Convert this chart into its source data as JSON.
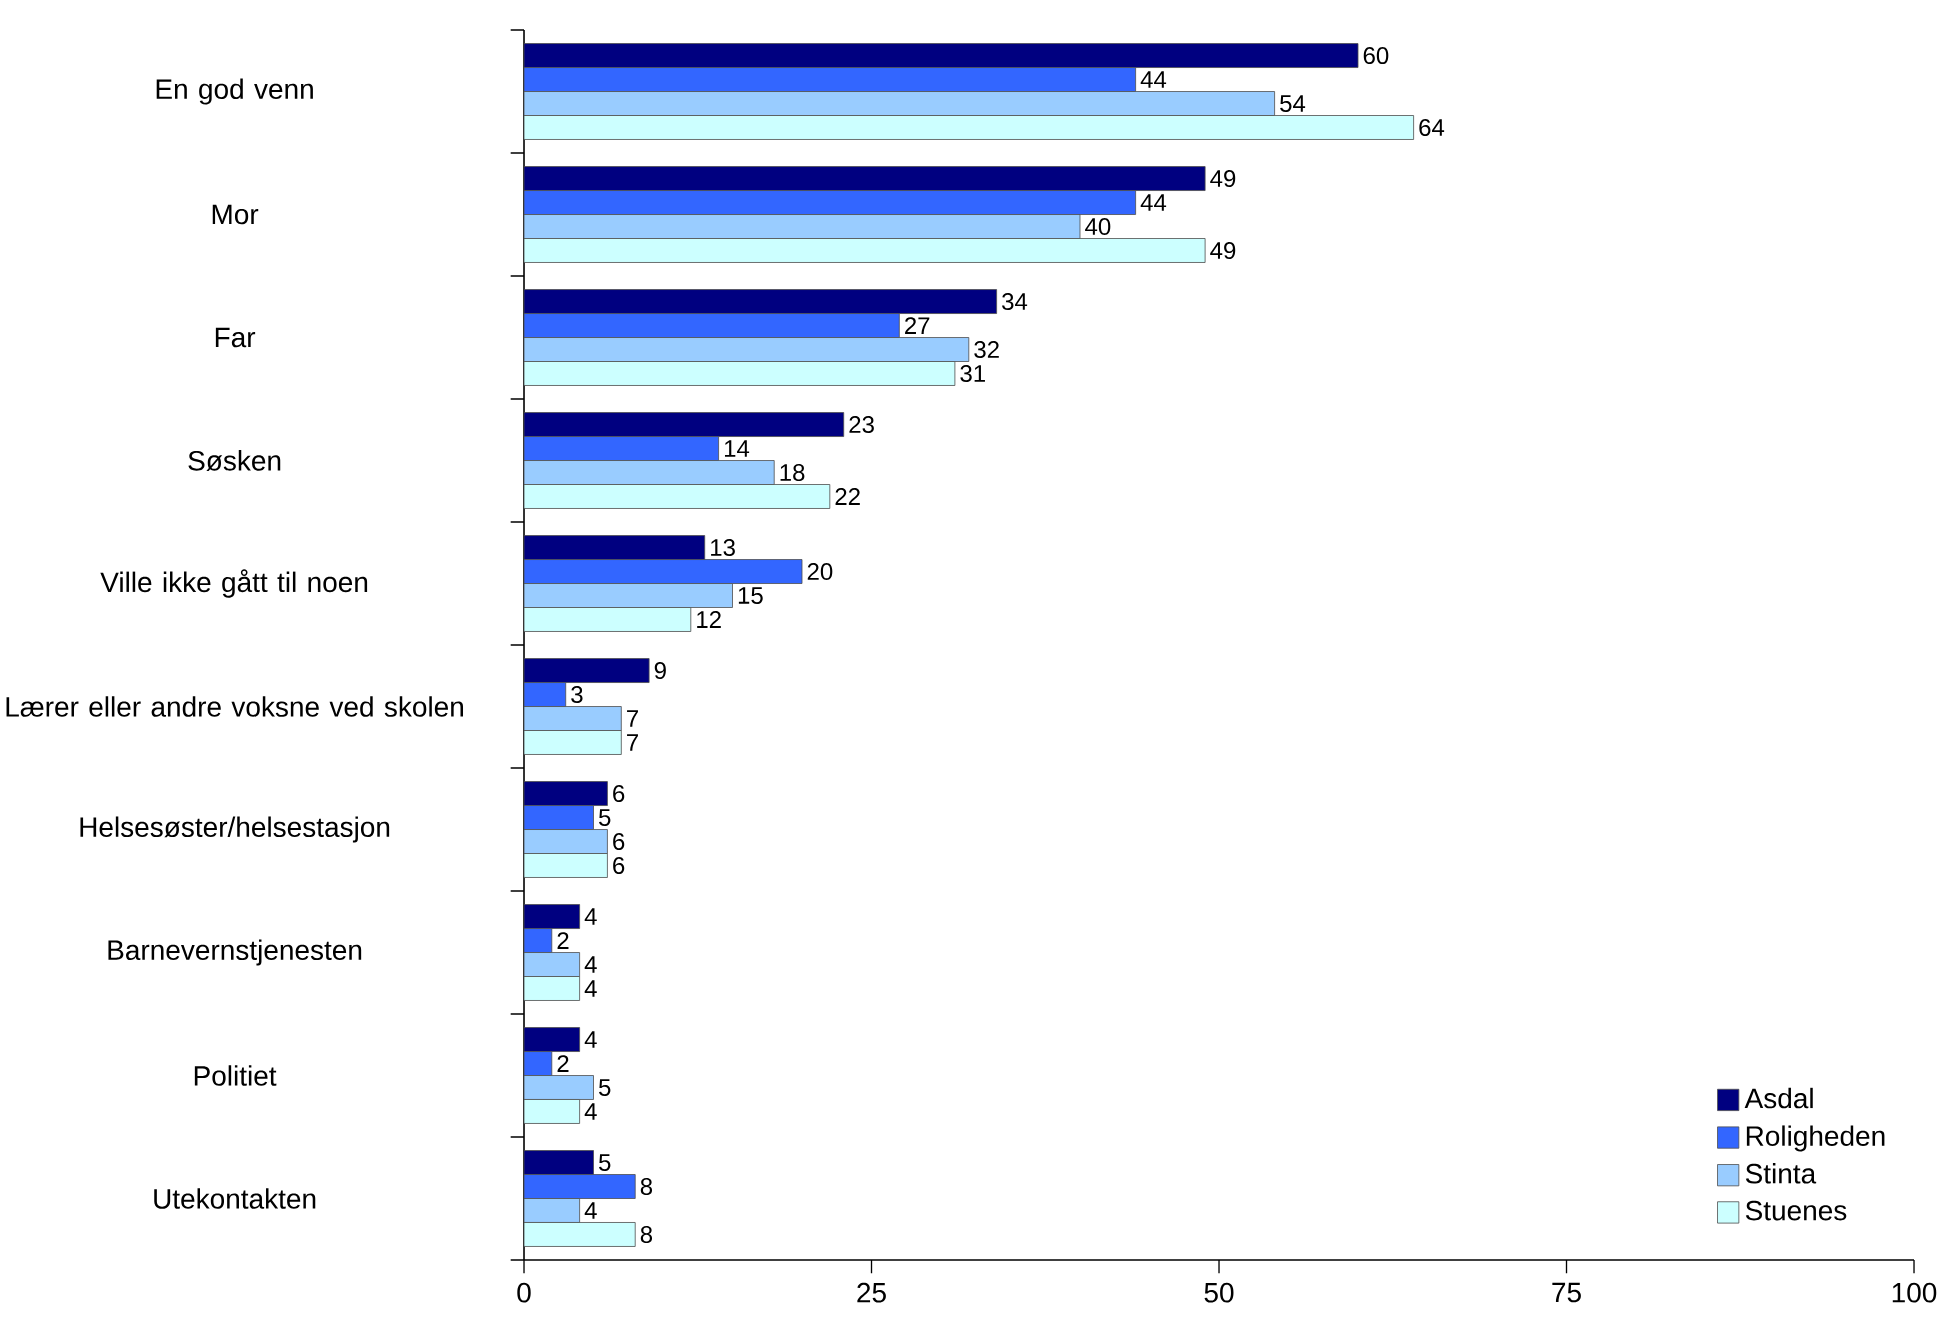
{
  "chart_data": {
    "type": "bar",
    "orientation": "horizontal",
    "categories": [
      "En god venn",
      "Mor",
      "Far",
      "Søsken",
      "Ville ikke gått til noen",
      "Lærer eller andre voksne ved skolen",
      "Helsesøster/helsestasjon",
      "Barnevernstjenesten",
      "Politiet",
      "Utekontakten"
    ],
    "series": [
      {
        "name": "Asdal",
        "color": "#000080",
        "values": [
          60,
          49,
          34,
          23,
          13,
          9,
          6,
          4,
          4,
          5
        ]
      },
      {
        "name": "Roligheden",
        "color": "#3366ff",
        "values": [
          44,
          44,
          27,
          14,
          20,
          3,
          5,
          2,
          2,
          8
        ]
      },
      {
        "name": "Stinta",
        "color": "#99ccff",
        "values": [
          54,
          40,
          32,
          18,
          15,
          7,
          6,
          4,
          5,
          4
        ]
      },
      {
        "name": "Stuenes",
        "color": "#ccffff",
        "values": [
          64,
          49,
          31,
          22,
          12,
          7,
          6,
          4,
          4,
          8
        ]
      }
    ],
    "xlim": [
      0,
      100
    ],
    "xticks": [
      0,
      25,
      50,
      75,
      100
    ],
    "data_labels": true,
    "legend": "bottom right",
    "grid": false
  }
}
